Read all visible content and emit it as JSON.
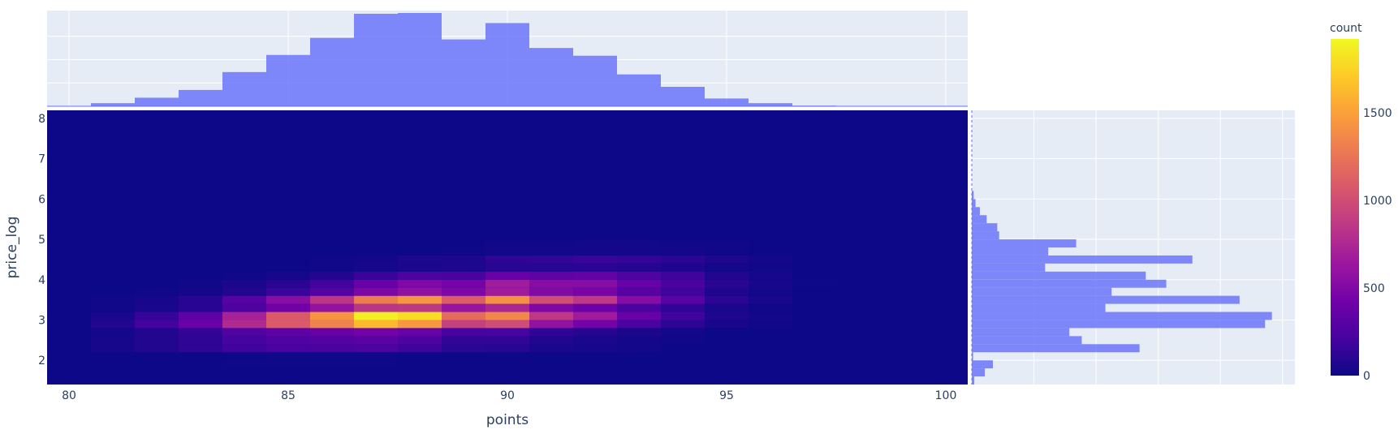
{
  "chart_data": {
    "type": "heatmap",
    "subtype": "density_heatmap_with_marginal_histograms",
    "xlabel": "points",
    "ylabel": "price_log",
    "colorbar_title": "count",
    "colorscale": [
      "#0d0887",
      "#46039f",
      "#7201a8",
      "#9c179e",
      "#bd3786",
      "#d8576b",
      "#ed7953",
      "#fb9f3a",
      "#fdca26",
      "#f0f921"
    ],
    "x_tick_labels": [
      "80",
      "85",
      "90",
      "95",
      "100"
    ],
    "y_tick_labels": [
      "2",
      "3",
      "4",
      "5",
      "6",
      "7",
      "8"
    ],
    "colorbar_tick_labels": [
      "0",
      "500",
      "1000",
      "1500"
    ],
    "xlim": [
      79.5,
      100.5
    ],
    "ylim": [
      1.4,
      8.2
    ],
    "zlim": [
      0,
      1920
    ],
    "x_bins": [
      80,
      81,
      82,
      83,
      84,
      85,
      86,
      87,
      88,
      89,
      90,
      91,
      92,
      93,
      94,
      95,
      96,
      97,
      98,
      99,
      100
    ],
    "x_bin_width": 1,
    "y_bin_width": 0.2,
    "top_histogram": {
      "bin_start": 79.5,
      "bin_width": 1,
      "counts": [
        2,
        40,
        110,
        210,
        440,
        660,
        880,
        1190,
        1200,
        860,
        1070,
        750,
        650,
        410,
        250,
        100,
        40,
        8,
        2,
        1,
        0
      ]
    },
    "right_histogram": {
      "y_bins": [
        1.5,
        1.7,
        1.9,
        2.1,
        2.3,
        2.5,
        2.7,
        2.9,
        3.1,
        3.3,
        3.5,
        3.7,
        3.9,
        4.1,
        4.3,
        4.5,
        4.7,
        4.9,
        5.1,
        5.3,
        5.5,
        5.7,
        5.9,
        6.1
      ],
      "counts": [
        40,
        210,
        340,
        20,
        2700,
        1770,
        1570,
        4720,
        4830,
        2150,
        4310,
        2250,
        3130,
        2800,
        1180,
        3550,
        1230,
        1680,
        440,
        410,
        240,
        130,
        60,
        30
      ]
    },
    "grid": true
  }
}
